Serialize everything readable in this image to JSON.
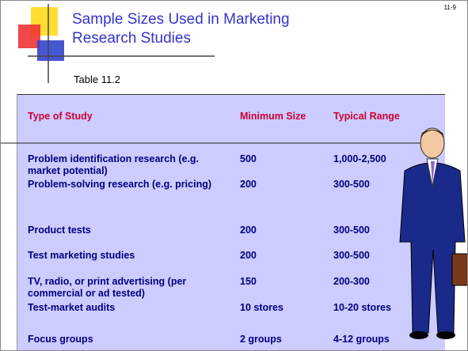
{
  "slide_number": "11-9",
  "header": {
    "title": "Sample Sizes Used in Marketing Research Studies",
    "subtitle": "Table 11.2"
  },
  "table": {
    "columns": [
      "Type of Study",
      "Minimum Size",
      "Typical Range"
    ],
    "rows": [
      [
        "Problem identification research (e.g. market potential)",
        "500",
        "1,000-2,500"
      ],
      [
        "Problem-solving research (e.g. pricing)",
        "200",
        "300-500"
      ],
      [
        "Product tests",
        "200",
        "300-500"
      ],
      [
        "Test marketing studies",
        "200",
        "300-500"
      ],
      [
        "TV, radio, or print advertising (per commercial or ad tested)",
        "150",
        "200-300"
      ],
      [
        "Test-market audits",
        "10 stores",
        "10-20 stores"
      ],
      [
        "Focus groups",
        "2 groups",
        "4-12 groups"
      ]
    ]
  }
}
